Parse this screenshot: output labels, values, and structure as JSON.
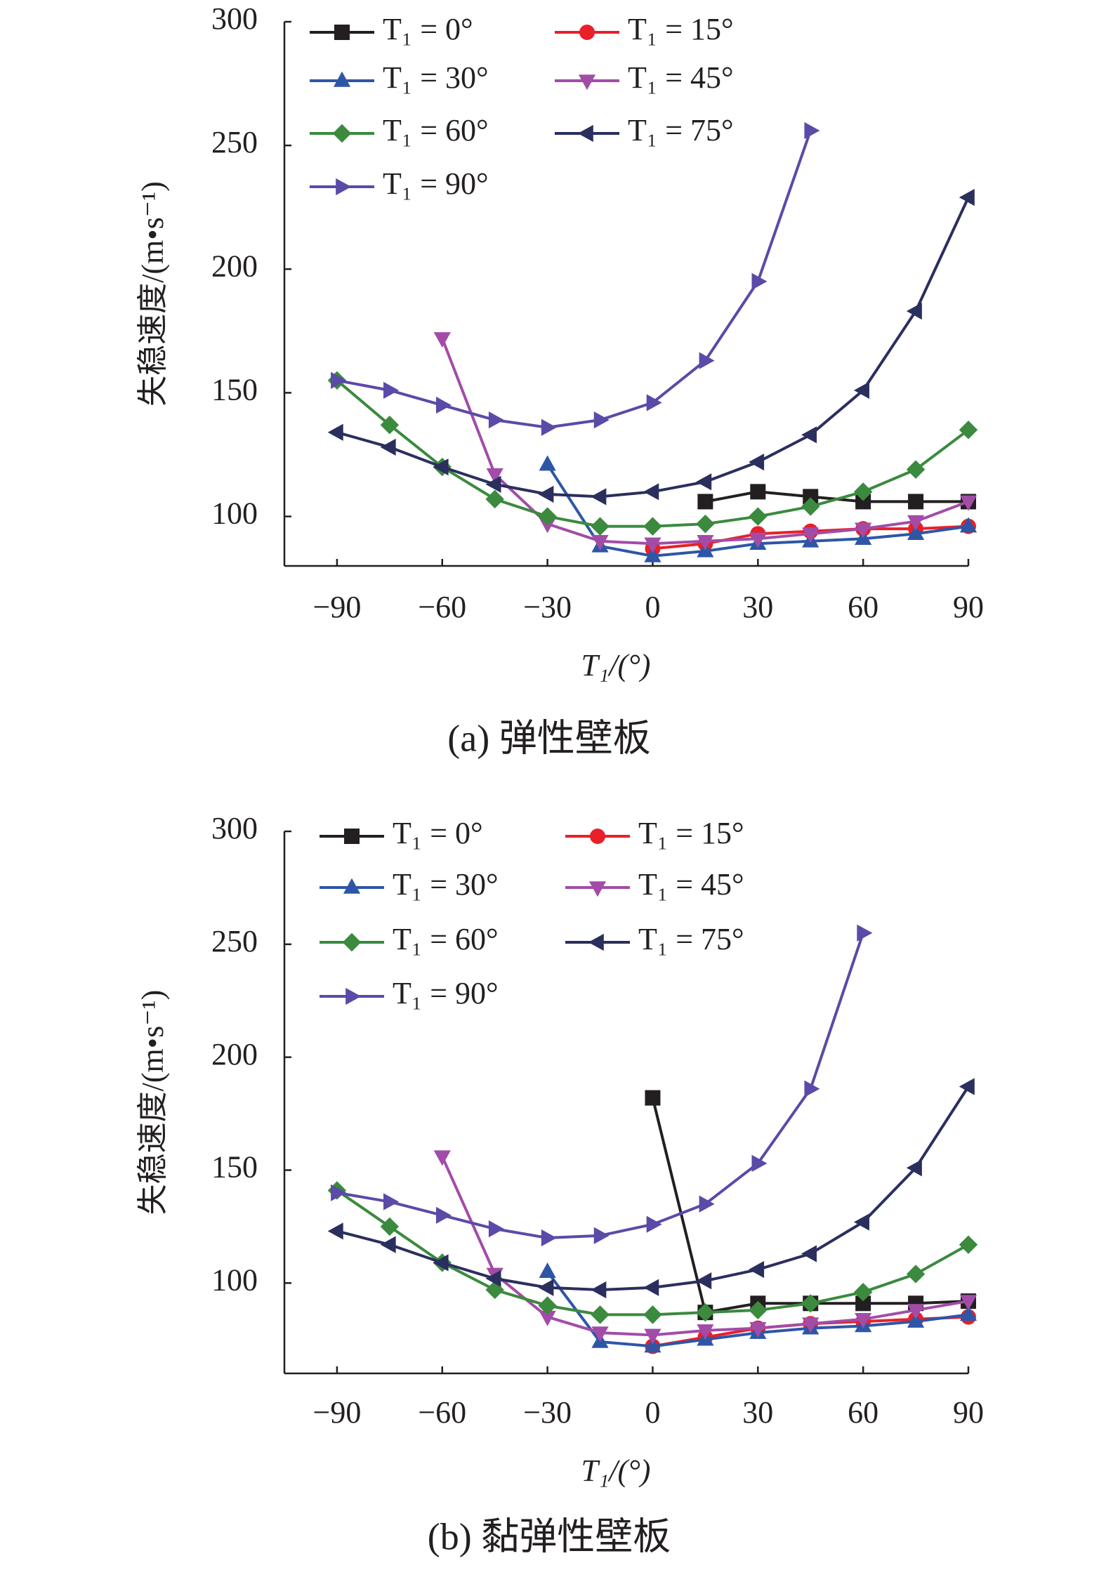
{
  "chart_data": [
    {
      "type": "line",
      "caption": "(a) 弹性壁板",
      "xlabel": "T₁/(°)",
      "ylabel": "失稳速度/(m•s⁻¹)",
      "x": [
        -90,
        -75,
        -60,
        -45,
        -30,
        -15,
        0,
        15,
        30,
        45,
        60,
        75,
        90
      ],
      "xlim": [
        -105,
        90
      ],
      "xticks": [
        {
          "value": -90,
          "label": "−90"
        },
        {
          "value": -60,
          "label": "−60"
        },
        {
          "value": -30,
          "label": "−30"
        },
        0,
        30,
        60,
        90
      ],
      "ylim": [
        80,
        300
      ],
      "yticks": [
        100,
        150,
        200,
        250,
        300
      ],
      "legend": "top-left",
      "series": [
        {
          "name": "T₁ = 0°",
          "color": "#231f20",
          "marker": "square",
          "values": [
            null,
            null,
            null,
            null,
            null,
            null,
            null,
            106,
            110,
            108,
            106,
            106,
            106
          ]
        },
        {
          "name": "T₁ = 15°",
          "color": "#e8202a",
          "marker": "circle",
          "values": [
            null,
            null,
            null,
            null,
            null,
            null,
            87,
            89,
            93,
            94,
            95,
            95,
            96
          ]
        },
        {
          "name": "T₁ = 30°",
          "color": "#2e56a6",
          "marker": "triangle-up",
          "values": [
            null,
            null,
            null,
            null,
            121,
            88,
            84,
            86,
            89,
            90,
            91,
            93,
            96
          ]
        },
        {
          "name": "T₁ = 45°",
          "color": "#a24ca8",
          "marker": "triangle-down",
          "values": [
            null,
            null,
            172,
            117,
            97,
            90,
            89,
            90,
            91,
            93,
            95,
            98,
            106
          ]
        },
        {
          "name": "T₁ = 60°",
          "color": "#3b8a3e",
          "marker": "diamond",
          "values": [
            155,
            137,
            120,
            107,
            100,
            96,
            96,
            97,
            100,
            104,
            110,
            119,
            135
          ]
        },
        {
          "name": "T₁ = 75°",
          "color": "#2a2f5e",
          "marker": "triangle-left",
          "values": [
            134,
            128,
            120,
            113,
            109,
            108,
            110,
            114,
            122,
            133,
            151,
            183,
            229
          ]
        },
        {
          "name": "T₁ = 90°",
          "color": "#5b4aa8",
          "marker": "triangle-right",
          "values": [
            155,
            151,
            145,
            139,
            136,
            139,
            146,
            163,
            195,
            256,
            null,
            null,
            null
          ]
        }
      ]
    },
    {
      "type": "line",
      "caption": "(b) 黏弹性壁板",
      "xlabel": "T₁/(°)",
      "ylabel": "失稳速度/(m•s⁻¹)",
      "x": [
        -90,
        -75,
        -60,
        -45,
        -30,
        -15,
        0,
        15,
        30,
        45,
        60,
        75,
        90
      ],
      "xlim": [
        -105,
        90
      ],
      "xticks": [
        {
          "value": -90,
          "label": "−90"
        },
        {
          "value": -60,
          "label": "−60"
        },
        {
          "value": -30,
          "label": "−30"
        },
        0,
        30,
        60,
        90
      ],
      "ylim": [
        60,
        300
      ],
      "yticks": [
        100,
        150,
        200,
        250,
        300
      ],
      "legend": "top-left",
      "series": [
        {
          "name": "T₁ = 0°",
          "color": "#231f20",
          "marker": "square",
          "values": [
            null,
            null,
            null,
            null,
            null,
            null,
            182,
            87,
            91,
            91,
            91,
            91,
            92
          ]
        },
        {
          "name": "T₁ = 15°",
          "color": "#e8202a",
          "marker": "circle",
          "values": [
            null,
            null,
            null,
            null,
            null,
            null,
            72,
            76,
            80,
            82,
            83,
            84,
            85
          ]
        },
        {
          "name": "T₁ = 30°",
          "color": "#2e56a6",
          "marker": "triangle-up",
          "values": [
            null,
            null,
            null,
            null,
            105,
            74,
            72,
            75,
            78,
            80,
            81,
            83,
            86
          ]
        },
        {
          "name": "T₁ = 45°",
          "color": "#a24ca8",
          "marker": "triangle-down",
          "values": [
            null,
            null,
            156,
            104,
            85,
            78,
            77,
            79,
            80,
            82,
            84,
            88,
            92
          ]
        },
        {
          "name": "T₁ = 60°",
          "color": "#3b8a3e",
          "marker": "diamond",
          "values": [
            141,
            125,
            109,
            97,
            90,
            86,
            86,
            87,
            88,
            91,
            96,
            104,
            117
          ]
        },
        {
          "name": "T₁ = 75°",
          "color": "#2a2f5e",
          "marker": "triangle-left",
          "values": [
            123,
            117,
            109,
            102,
            98,
            97,
            98,
            101,
            106,
            113,
            127,
            151,
            187
          ]
        },
        {
          "name": "T₁ = 90°",
          "color": "#5b4aa8",
          "marker": "triangle-right",
          "values": [
            140,
            136,
            130,
            124,
            120,
            121,
            126,
            135,
            153,
            186,
            255,
            null,
            null
          ]
        }
      ]
    }
  ]
}
